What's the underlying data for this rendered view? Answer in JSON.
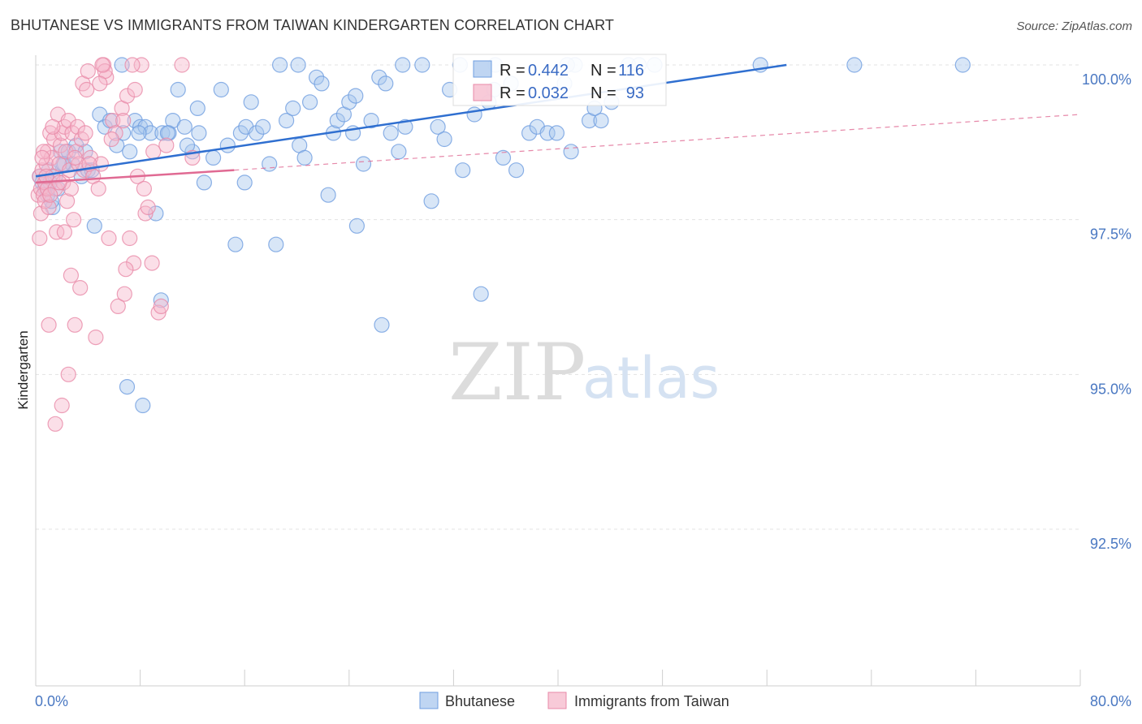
{
  "title": "BHUTANESE VS IMMIGRANTS FROM TAIWAN KINDERGARTEN CORRELATION CHART",
  "source": "Source: ZipAtlas.com",
  "watermark": {
    "part1": "ZIP",
    "part2": "atlas"
  },
  "colors": {
    "blue_fill": "#a9c7ee",
    "blue_stroke": "#6f9ee0",
    "blue_line": "#2f6fd0",
    "pink_fill": "#f6b8cb",
    "pink_stroke": "#e889a8",
    "pink_line": "#e06a93",
    "tick_text": "#4a78c2",
    "grid": "#e3e3e3"
  },
  "stats_legend": [
    {
      "r_label": "R =",
      "r_value": "0.442",
      "n_label": "N =",
      "n_value": "116"
    },
    {
      "r_label": "R =",
      "r_value": "0.032",
      "n_label": "N =",
      "n_value": "93"
    }
  ],
  "chart_data": {
    "type": "scatter",
    "title": "BHUTANESE VS IMMIGRANTS FROM TAIWAN KINDERGARTEN CORRELATION CHART",
    "ylabel": "Kindergarten",
    "xlabel": "",
    "xlim": [
      0,
      80
    ],
    "ylim": [
      90.2,
      100.4
    ],
    "x_tick_labels": [
      "0.0%",
      "80.0%"
    ],
    "y_ticks": [
      100,
      97.5,
      95,
      92.5
    ],
    "y_tick_labels": [
      "100.0%",
      "97.5%",
      "95.0%",
      "92.5%"
    ],
    "grid": true,
    "legend_position": "bottom",
    "series": [
      {
        "name": "Bhutanese",
        "r": 0.442,
        "n": 116,
        "trend": {
          "x0": 0,
          "y0": 98.2,
          "x1": 57.5,
          "y1": 100.0,
          "extends_to_edge": false
        },
        "points": [
          [
            0.3,
            98.2
          ],
          [
            0.5,
            98.1
          ],
          [
            0.7,
            98.0
          ],
          [
            0.9,
            97.9
          ],
          [
            1.0,
            98.3
          ],
          [
            1.1,
            98.1
          ],
          [
            1.3,
            97.7
          ],
          [
            1.5,
            98.2
          ],
          [
            1.7,
            98.0
          ],
          [
            1.9,
            98.6
          ],
          [
            2.2,
            98.4
          ],
          [
            2.5,
            98.6
          ],
          [
            2.8,
            98.4
          ],
          [
            3.1,
            98.7
          ],
          [
            3.5,
            98.2
          ],
          [
            4.0,
            98.3
          ],
          [
            4.5,
            97.4
          ],
          [
            4.9,
            99.2
          ],
          [
            5.3,
            99.0
          ],
          [
            5.7,
            99.1
          ],
          [
            6.2,
            98.7
          ],
          [
            6.7,
            98.9
          ],
          [
            7.2,
            98.6
          ],
          [
            7.6,
            99.1
          ],
          [
            8.0,
            99.0
          ],
          [
            8.4,
            99.0
          ],
          [
            8.8,
            98.9
          ],
          [
            9.2,
            97.6
          ],
          [
            9.7,
            98.9
          ],
          [
            10.2,
            98.9
          ],
          [
            10.5,
            99.1
          ],
          [
            10.9,
            99.6
          ],
          [
            11.4,
            99.0
          ],
          [
            12.0,
            98.6
          ],
          [
            12.5,
            98.9
          ],
          [
            12.9,
            98.1
          ],
          [
            13.6,
            98.5
          ],
          [
            14.2,
            99.6
          ],
          [
            14.7,
            98.7
          ],
          [
            15.3,
            97.1
          ],
          [
            15.7,
            98.9
          ],
          [
            16.1,
            99.0
          ],
          [
            16.5,
            99.4
          ],
          [
            16.9,
            98.9
          ],
          [
            17.4,
            99.0
          ],
          [
            17.9,
            98.4
          ],
          [
            18.4,
            97.1
          ],
          [
            18.7,
            100.0
          ],
          [
            19.2,
            99.1
          ],
          [
            19.7,
            99.3
          ],
          [
            20.2,
            98.7
          ],
          [
            20.6,
            98.5
          ],
          [
            21.0,
            99.4
          ],
          [
            21.5,
            99.8
          ],
          [
            21.9,
            99.7
          ],
          [
            22.4,
            97.9
          ],
          [
            22.8,
            98.9
          ],
          [
            23.1,
            99.1
          ],
          [
            23.6,
            99.2
          ],
          [
            24.0,
            99.4
          ],
          [
            24.3,
            98.9
          ],
          [
            24.6,
            97.4
          ],
          [
            25.1,
            98.4
          ],
          [
            25.7,
            99.1
          ],
          [
            26.3,
            99.8
          ],
          [
            26.8,
            99.7
          ],
          [
            27.2,
            98.9
          ],
          [
            27.8,
            98.6
          ],
          [
            28.3,
            99.0
          ],
          [
            26.5,
            95.8
          ],
          [
            29.6,
            100.0
          ],
          [
            30.3,
            97.8
          ],
          [
            30.8,
            99.0
          ],
          [
            31.3,
            98.8
          ],
          [
            31.7,
            99.6
          ],
          [
            32.7,
            98.3
          ],
          [
            32.5,
            100.0
          ],
          [
            33.6,
            99.2
          ],
          [
            34.1,
            96.3
          ],
          [
            34.7,
            99.4
          ],
          [
            35.2,
            100.0
          ],
          [
            35.8,
            98.5
          ],
          [
            36.4,
            99.7
          ],
          [
            36.8,
            98.3
          ],
          [
            37.8,
            98.9
          ],
          [
            38.4,
            99.0
          ],
          [
            39.2,
            98.9
          ],
          [
            39.9,
            98.9
          ],
          [
            40.5,
            99.7
          ],
          [
            41.0,
            98.6
          ],
          [
            41.3,
            100.0
          ],
          [
            42.4,
            99.1
          ],
          [
            42.8,
            99.3
          ],
          [
            43.3,
            99.1
          ],
          [
            44.1,
            99.4
          ],
          [
            45.4,
            100.0
          ],
          [
            46.2,
            100.0
          ],
          [
            9.6,
            96.2
          ],
          [
            7.0,
            94.8
          ],
          [
            8.2,
            94.5
          ],
          [
            20.1,
            100.0
          ],
          [
            28.1,
            100.0
          ],
          [
            6.6,
            100.0
          ],
          [
            47.4,
            100.0
          ],
          [
            55.5,
            100.0
          ],
          [
            62.7,
            100.0
          ],
          [
            71.0,
            100.0
          ],
          [
            7.9,
            98.9
          ],
          [
            10.1,
            98.9
          ],
          [
            11.6,
            98.7
          ],
          [
            16.0,
            98.1
          ],
          [
            24.5,
            99.5
          ],
          [
            35.1,
            99.6
          ],
          [
            40.7,
            100.0
          ],
          [
            12.4,
            99.3
          ],
          [
            3.8,
            98.6
          ],
          [
            2.1,
            98.4
          ],
          [
            1.2,
            97.8
          ],
          [
            4.3,
            98.3
          ]
        ]
      },
      {
        "name": "Immigrants from Taiwan",
        "r": 0.032,
        "n": 93,
        "trend": {
          "x0": 0,
          "y0": 98.1,
          "x1": 15.2,
          "y1": 98.3,
          "extends_to_edge": true,
          "edge_y": 99.2
        },
        "points": [
          [
            0.2,
            97.9
          ],
          [
            0.3,
            98.2
          ],
          [
            0.4,
            97.6
          ],
          [
            0.4,
            98.0
          ],
          [
            0.5,
            98.3
          ],
          [
            0.6,
            97.9
          ],
          [
            0.7,
            98.1
          ],
          [
            0.7,
            97.8
          ],
          [
            0.8,
            98.4
          ],
          [
            0.9,
            98.6
          ],
          [
            0.9,
            98.0
          ],
          [
            1.0,
            97.7
          ],
          [
            1.1,
            98.9
          ],
          [
            1.2,
            98.5
          ],
          [
            1.3,
            98.2
          ],
          [
            1.4,
            98.8
          ],
          [
            1.5,
            98.0
          ],
          [
            1.6,
            97.3
          ],
          [
            1.7,
            99.2
          ],
          [
            1.8,
            98.4
          ],
          [
            1.9,
            98.7
          ],
          [
            2.0,
            98.9
          ],
          [
            2.1,
            98.1
          ],
          [
            2.2,
            99.0
          ],
          [
            2.3,
            98.6
          ],
          [
            2.4,
            97.8
          ],
          [
            2.5,
            99.1
          ],
          [
            2.6,
            98.3
          ],
          [
            2.7,
            96.6
          ],
          [
            2.8,
            98.9
          ],
          [
            2.9,
            97.5
          ],
          [
            3.1,
            98.6
          ],
          [
            3.2,
            99.0
          ],
          [
            3.4,
            96.4
          ],
          [
            3.5,
            98.8
          ],
          [
            3.6,
            99.7
          ],
          [
            3.7,
            98.3
          ],
          [
            3.9,
            99.6
          ],
          [
            4.0,
            99.9
          ],
          [
            4.2,
            98.5
          ],
          [
            4.4,
            98.2
          ],
          [
            4.6,
            95.6
          ],
          [
            4.8,
            98.0
          ],
          [
            5.0,
            98.4
          ],
          [
            5.2,
            100.0
          ],
          [
            5.4,
            99.8
          ],
          [
            5.6,
            97.2
          ],
          [
            5.9,
            99.1
          ],
          [
            6.1,
            98.9
          ],
          [
            6.3,
            96.1
          ],
          [
            6.6,
            99.3
          ],
          [
            6.8,
            96.3
          ],
          [
            7.0,
            99.5
          ],
          [
            7.2,
            97.2
          ],
          [
            7.5,
            96.8
          ],
          [
            7.8,
            98.2
          ],
          [
            8.1,
            100.0
          ],
          [
            8.4,
            97.6
          ],
          [
            8.6,
            97.7
          ],
          [
            8.9,
            96.8
          ],
          [
            9.4,
            96.0
          ],
          [
            9.6,
            96.1
          ],
          [
            10.0,
            98.7
          ],
          [
            11.2,
            100.0
          ],
          [
            12.0,
            98.5
          ],
          [
            0.3,
            97.2
          ],
          [
            0.6,
            98.6
          ],
          [
            1.0,
            95.8
          ],
          [
            1.5,
            94.2
          ],
          [
            2.0,
            94.5
          ],
          [
            2.5,
            95.0
          ],
          [
            3.0,
            95.8
          ],
          [
            1.3,
            99.0
          ],
          [
            2.7,
            98.0
          ],
          [
            3.3,
            98.4
          ],
          [
            5.3,
            99.9
          ],
          [
            7.4,
            100.0
          ],
          [
            8.3,
            98.0
          ],
          [
            6.7,
            99.1
          ],
          [
            4.9,
            99.7
          ],
          [
            5.8,
            98.8
          ],
          [
            0.8,
            98.2
          ],
          [
            1.8,
            98.1
          ],
          [
            3.0,
            98.5
          ],
          [
            4.1,
            98.4
          ],
          [
            5.1,
            100.0
          ],
          [
            9.0,
            98.6
          ],
          [
            6.9,
            96.7
          ],
          [
            1.1,
            97.9
          ],
          [
            0.5,
            98.5
          ],
          [
            2.2,
            97.3
          ],
          [
            3.8,
            98.9
          ],
          [
            7.6,
            99.6
          ]
        ]
      }
    ]
  }
}
